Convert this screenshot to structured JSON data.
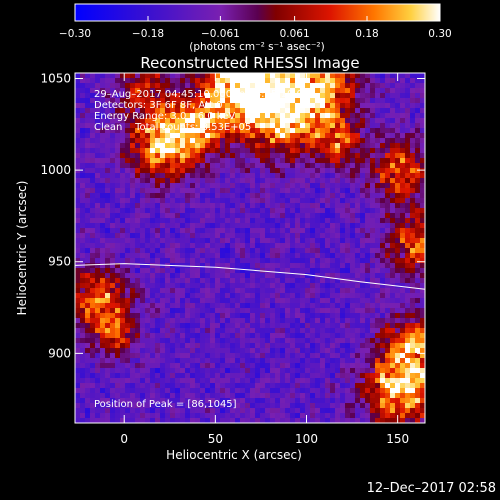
{
  "chart_data": {
    "type": "heatmap",
    "title": "Reconstructed RHESSI Image",
    "xlabel": "Heliocentric X (arcsec)",
    "ylabel": "Heliocentric Y (arcsec)",
    "xlim": [
      -27,
      165
    ],
    "ylim": [
      862,
      1053
    ],
    "xticks": [
      0,
      50,
      100,
      150
    ],
    "yticks": [
      900,
      950,
      1000,
      1050
    ],
    "colorbar": {
      "ticks": [
        -0.3,
        -0.18,
        -0.061,
        0.061,
        0.18,
        0.3
      ],
      "tick_labels": [
        "−0.30",
        "−0.18",
        "−0.061",
        "0.061",
        "0.18",
        "0.30"
      ],
      "unit_text": "(photons cm⁻² s⁻¹ asec⁻²)",
      "vmin": -0.3,
      "vmax": 0.3
    },
    "info_lines": [
      "29–Aug–2017 04:45:10.000 to 04:55:10.000",
      "Detectors: 3F 6F 8F, Att 0",
      "Energy Range: 3.0 – 6.0 keV",
      "Clean    Total counts: 3.53E+05"
    ],
    "peak_label": "Position of Peak = [86,1045]",
    "peak": [
      86,
      1045
    ],
    "limb_curve": [
      [
        -27,
        948
      ],
      [
        0,
        949
      ],
      [
        50,
        947
      ],
      [
        100,
        943
      ],
      [
        130,
        939
      ],
      [
        165,
        935
      ]
    ],
    "sources": [
      {
        "x": 85,
        "y": 1035,
        "amp": 0.3,
        "sigma": 18
      },
      {
        "x": 60,
        "y": 1050,
        "amp": 0.22,
        "sigma": 14
      },
      {
        "x": 110,
        "y": 1048,
        "amp": 0.15,
        "sigma": 14
      },
      {
        "x": 22,
        "y": 1015,
        "amp": 0.26,
        "sigma": 14
      },
      {
        "x": 42,
        "y": 1025,
        "amp": 0.15,
        "sigma": 10
      },
      {
        "x": 152,
        "y": 880,
        "amp": 0.26,
        "sigma": 14
      },
      {
        "x": 160,
        "y": 905,
        "amp": 0.16,
        "sigma": 12
      },
      {
        "x": 152,
        "y": 1000,
        "amp": 0.15,
        "sigma": 12
      },
      {
        "x": 160,
        "y": 960,
        "amp": 0.13,
        "sigma": 12
      },
      {
        "x": -15,
        "y": 930,
        "amp": 0.17,
        "sigma": 12
      },
      {
        "x": -5,
        "y": 910,
        "amp": 0.09,
        "sigma": 9
      },
      {
        "x": 118,
        "y": 1015,
        "amp": 0.12,
        "sigma": 9
      },
      {
        "x": 10,
        "y": 1045,
        "amp": 0.06,
        "sigma": 10
      }
    ],
    "background_level": -0.12
  },
  "footer": {
    "timestamp": "12–Dec–2017 02:58"
  }
}
